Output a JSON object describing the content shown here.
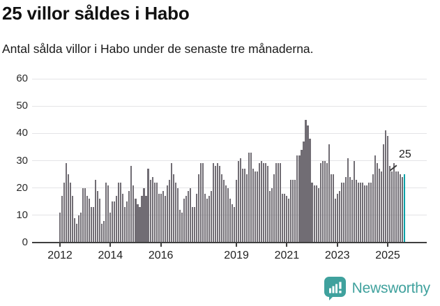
{
  "header": {
    "title": "25 villor såldes i Habo",
    "subtitle": "Antal sålda villor i Habo under de senaste tre månaderna."
  },
  "annotation": {
    "label": "25"
  },
  "logo": {
    "text": "Newsworthy"
  },
  "colors": {
    "bar": "#716d74",
    "highlight": "#00a1a7",
    "grid": "#e4e4e6",
    "axis": "#3f3f3f",
    "logo_teal": "#3fa19d"
  },
  "chart_data": {
    "type": "bar",
    "title": "25 villor såldes i Habo",
    "subtitle": "Antal sålda villor i Habo under de senaste tre månaderna.",
    "unit": "sålda villor (rullande tre månader)",
    "x_start_month": "2012-01",
    "x_end_month": "2025-09",
    "ylim": [
      0,
      60
    ],
    "yticks": [
      0,
      10,
      20,
      30,
      40,
      50,
      60
    ],
    "xticks": [
      2012,
      2014,
      2016,
      2019,
      2021,
      2023,
      2025
    ],
    "grid": true,
    "highlight_index": 164,
    "highlight_value": 25,
    "values": [
      11,
      17,
      22,
      29,
      25,
      22,
      17,
      9,
      7,
      10,
      11,
      20,
      20,
      17,
      16,
      13,
      13,
      23,
      19,
      16,
      7,
      8,
      22,
      21,
      11,
      15,
      15,
      17,
      22,
      22,
      18,
      13,
      15,
      19,
      28,
      21,
      16,
      14,
      13,
      17,
      20,
      17,
      27,
      23,
      24,
      22,
      22,
      18,
      18,
      19,
      17,
      21,
      23,
      29,
      25,
      22,
      20,
      12,
      11,
      16,
      17,
      19,
      20,
      13,
      13,
      18,
      25,
      29,
      29,
      18,
      16,
      17,
      19,
      29,
      28,
      29,
      28,
      25,
      23,
      21,
      20,
      16,
      14,
      13,
      23,
      30,
      31,
      27,
      27,
      25,
      33,
      33,
      27,
      26,
      26,
      29,
      30,
      29,
      29,
      28,
      19,
      20,
      25,
      29,
      29,
      29,
      18,
      18,
      17,
      16,
      23,
      23,
      23,
      32,
      32,
      34,
      37,
      45,
      43,
      38,
      22,
      21,
      21,
      20,
      29,
      30,
      30,
      29,
      36,
      25,
      25,
      16,
      18,
      19,
      22,
      22,
      24,
      31,
      24,
      23,
      30,
      23,
      22,
      22,
      22,
      21,
      21,
      22,
      22,
      25,
      32,
      29,
      27,
      26,
      36,
      41,
      39,
      28,
      26,
      29,
      26,
      26,
      25,
      24,
      25
    ]
  }
}
